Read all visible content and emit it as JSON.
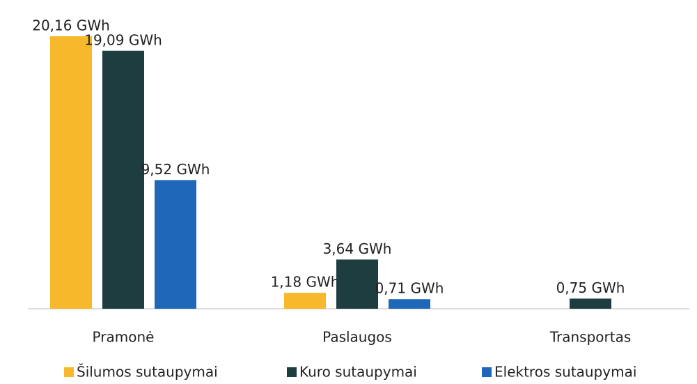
{
  "chart_data": {
    "type": "bar",
    "categories": [
      "Pramonė",
      "Paslaugos",
      "Transportas"
    ],
    "series": [
      {
        "name": "Šilumos sutaupymai",
        "color": "#f7b92b",
        "values": [
          20.16,
          1.18,
          null
        ],
        "value_labels": [
          "20,16 GWh",
          "1,18 GWh",
          null
        ]
      },
      {
        "name": "Kuro sutaupymai",
        "color": "#1d3d40",
        "values": [
          19.09,
          3.64,
          0.75
        ],
        "value_labels": [
          "19,09 GWh",
          "3,64 GWh",
          "0,75 GWh"
        ]
      },
      {
        "name": "Elektros sutaupymai",
        "color": "#1f67b8",
        "values": [
          9.52,
          0.71,
          null
        ],
        "value_labels": [
          "9,52 GWh",
          "0,71 GWh",
          null
        ]
      }
    ]
  }
}
